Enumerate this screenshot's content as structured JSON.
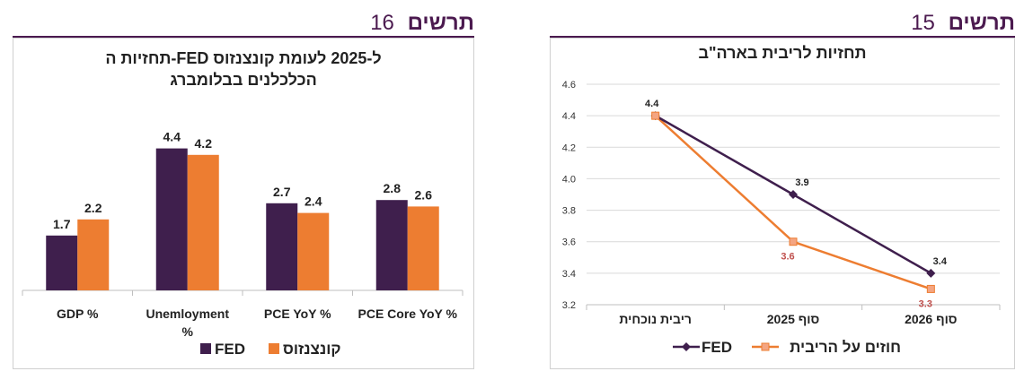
{
  "left_figure": {
    "word": "תרשים",
    "number": "16"
  },
  "right_figure": {
    "word": "תרשים",
    "number": "15"
  },
  "chart_data": [
    {
      "type": "bar",
      "title_lines": [
        "תחזיות ה-FED ל-2025 לעומת קונצנזוס",
        "הכלכלנים בבלומברג"
      ],
      "categories": [
        "GDP %",
        "Unemloyment %",
        "PCE YoY %",
        "PCE Core YoY %"
      ],
      "series": [
        {
          "name": "FED",
          "values": [
            1.7,
            4.4,
            2.7,
            2.8
          ],
          "color": "#3f1f4d"
        },
        {
          "name": "קונצנזוס",
          "values": [
            2.2,
            4.2,
            2.4,
            2.6
          ],
          "color": "#ed7d31"
        }
      ],
      "ylim": [
        0,
        5
      ],
      "grid": false,
      "legend": "bottom",
      "data_labels": true
    },
    {
      "type": "line",
      "title": "תחזיות לריבית בארה\"ב",
      "categories": [
        "ריבית נוכחית",
        "סוף 2025",
        "סוף 2026"
      ],
      "series": [
        {
          "name": "FED",
          "values": [
            4.4,
            3.9,
            3.4
          ],
          "color": "#3f1f4d",
          "marker": "diamond"
        },
        {
          "name": "חוזים על הריבית",
          "values": [
            4.4,
            3.6,
            3.3
          ],
          "color": "#ed7d31",
          "marker": "square"
        }
      ],
      "ylim": [
        3.2,
        4.6
      ],
      "yticks": [
        "3.2",
        "3.4",
        "3.6",
        "3.8",
        "4.0",
        "4.2",
        "4.4",
        "4.6"
      ],
      "grid": true,
      "legend": "bottom",
      "data_labels": true
    }
  ]
}
